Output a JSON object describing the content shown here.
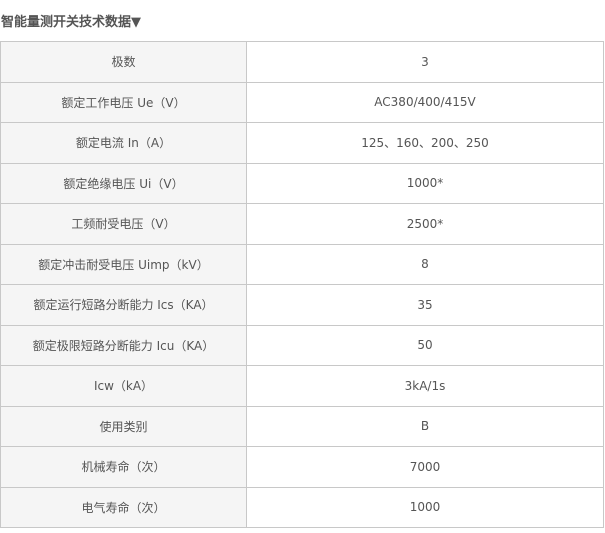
{
  "title": "智能量测开关技术数据▼",
  "rows": [
    {
      "label": "极数",
      "value": "3"
    },
    {
      "label": "额定工作电压 Ue（V）",
      "value": "AC380/400/415V"
    },
    {
      "label": "额定电流 In（A）",
      "value": "125、160、200、250"
    },
    {
      "label": "额定绝缘电压 Ui（V）",
      "value": "1000*"
    },
    {
      "label": "工频耐受电压（V）",
      "value": "2500*"
    },
    {
      "label": "额定冲击耐受电压 Uimp（kV）",
      "value": "8"
    },
    {
      "label": "额定运行短路分断能力 Ics（KA）",
      "value": "35"
    },
    {
      "label": "额定极限短路分断能力 Icu（KA）",
      "value": "50"
    },
    {
      "label": "Icw（kA）",
      "value": "3kA/1s"
    },
    {
      "label": "使用类别",
      "value": "B"
    },
    {
      "label": "机械寿命（次）",
      "value": "7000"
    },
    {
      "label": "电气寿命（次）",
      "value": "1000"
    }
  ]
}
